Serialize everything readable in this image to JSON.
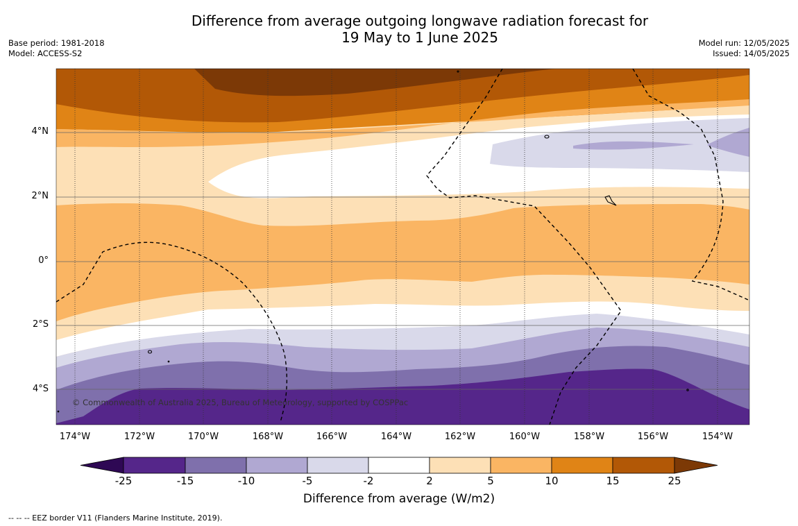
{
  "title": {
    "line1": "Difference from average outgoing longwave radiation forecast for",
    "line2": "19 May to 1 June 2025"
  },
  "meta_left": {
    "base_period": "Base period: 1981-2018",
    "model": "Model: ACCESS-S2"
  },
  "meta_right": {
    "model_run": "Model run: 12/05/2025",
    "issued": "Issued: 14/05/2025"
  },
  "map": {
    "lat_labels": [
      "4°N",
      "2°N",
      "0°",
      "2°S",
      "4°S"
    ],
    "lon_labels": [
      "174°W",
      "172°W",
      "170°W",
      "168°W",
      "166°W",
      "164°W",
      "162°W",
      "160°W",
      "158°W",
      "156°W",
      "154°W"
    ],
    "copyright": "© Commonwealth of Australia 2025, Bureau of Meteorology, supported by COSPPac"
  },
  "colorbar": {
    "ticks": [
      "-25",
      "-15",
      "-10",
      "-5",
      "-2",
      "2",
      "5",
      "10",
      "15",
      "25"
    ],
    "colors": [
      "#55268a",
      "#7f70ac",
      "#b0a8d2",
      "#d9d9ea",
      "#ffffff",
      "#fde0b6",
      "#fab563",
      "#e08416",
      "#b25806",
      "#7c3906",
      "#2e0854"
    ],
    "label": "Difference from average (W/m2)"
  },
  "footer": "--  --  -- EEZ border V11 (Flanders Marine Institute, 2019)."
}
